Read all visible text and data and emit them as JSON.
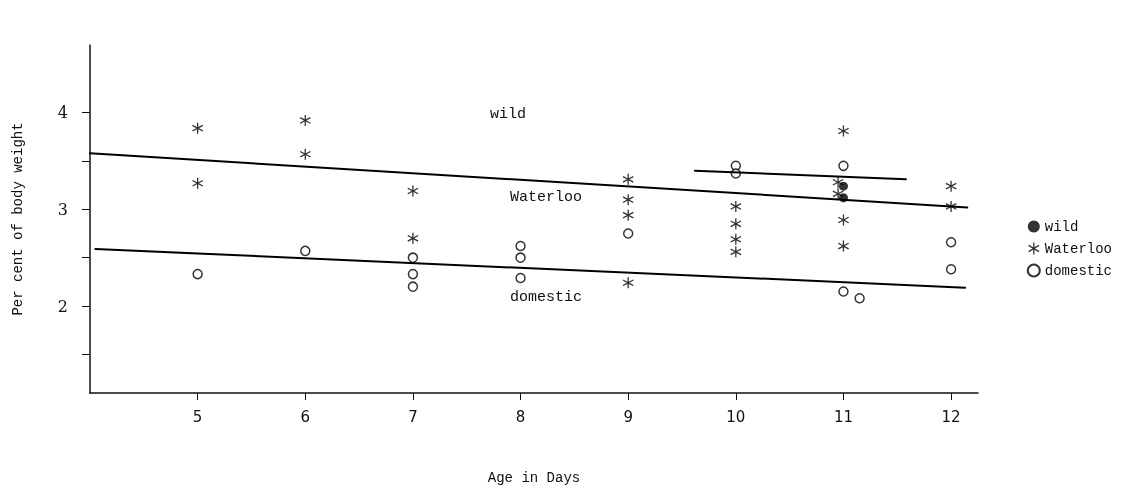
{
  "chart_data": {
    "type": "scatter",
    "xlabel": "Age in Days",
    "ylabel": "Per cent of body weight",
    "xlim": [
      4,
      12.25
    ],
    "xticks": [
      5,
      6,
      7,
      8,
      9,
      10,
      11,
      12
    ],
    "ylim": [
      1.1,
      4.7
    ],
    "yticks": [
      {
        "value": 1.5,
        "label": null
      },
      2,
      {
        "value": 2.5,
        "label": null
      },
      3,
      {
        "value": 3.5,
        "label": null
      },
      4
    ],
    "grid": false,
    "legend": "right",
    "series": [
      {
        "name": "wild",
        "color": "#000000",
        "marker": "circle",
        "x": [
          11,
          11
        ],
        "values": [
          3.24,
          3.12
        ]
      },
      {
        "name": "Waterloo",
        "color": "#000000",
        "marker": "star",
        "x": [
          5,
          5,
          6,
          6,
          7,
          7,
          9,
          9,
          9,
          9,
          10,
          10,
          10,
          10,
          11,
          10.95,
          10.95,
          11,
          11,
          12,
          12
        ],
        "values": [
          3.84,
          3.27,
          3.92,
          3.57,
          3.19,
          2.7,
          3.31,
          3.1,
          2.94,
          2.24,
          3.03,
          2.85,
          2.69,
          2.56,
          3.81,
          3.28,
          3.16,
          2.89,
          2.62,
          3.24,
          3.03
        ]
      },
      {
        "name": "domestic",
        "color": "#000000",
        "marker": "circle",
        "x": [
          5,
          6,
          7,
          7,
          7,
          8,
          8,
          8,
          9,
          10,
          10,
          11,
          11,
          11.15,
          12,
          12
        ],
        "values": [
          2.33,
          2.57,
          2.5,
          2.33,
          2.2,
          2.62,
          2.5,
          2.29,
          2.75,
          3.45,
          3.37,
          3.45,
          2.15,
          2.08,
          2.66,
          2.38
        ]
      },
      {
        "type": "line",
        "color": "#000000",
        "marker": "none",
        "line_style": "solid",
        "x": [
          4,
          12.15
        ],
        "values": [
          3.58,
          3.02
        ]
      },
      {
        "type": "line",
        "color": "#000000",
        "marker": "none",
        "line_style": "solid",
        "x": [
          4.05,
          12.13
        ],
        "values": [
          2.59,
          2.19
        ]
      },
      {
        "type": "line",
        "color": "#000000",
        "marker": "none",
        "line_style": "solid",
        "x": [
          9.62,
          11.58
        ],
        "values": [
          3.4,
          3.31
        ]
      }
    ],
    "annotations": [
      "wild",
      "Waterloo",
      "domestic"
    ]
  }
}
